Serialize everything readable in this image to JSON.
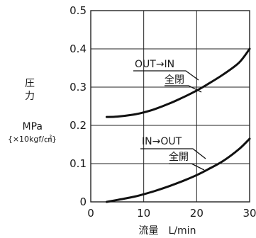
{
  "chart_data": {
    "type": "line",
    "ylabel_lines": [
      "圧",
      "力"
    ],
    "yunit_main": "MPa",
    "yunit_alt": "{×10kgf/㎠}",
    "xlabel": "流量　L/min",
    "xlim": [
      0,
      30
    ],
    "ylim": [
      0,
      0.5
    ],
    "xticks": [
      0,
      10,
      20,
      30
    ],
    "yticks": [
      0,
      0.1,
      0.2,
      0.3,
      0.4,
      0.5
    ],
    "xtick_labels": [
      "0",
      "10",
      "20",
      "30"
    ],
    "ytick_labels": [
      "0",
      "0.1",
      "0.2",
      "0.3",
      "0.4",
      "0.5"
    ],
    "grid": true,
    "series": [
      {
        "name": "OUT→IN",
        "sub_label": "全閉",
        "x": [
          3,
          5,
          8,
          10,
          12,
          15,
          18,
          20,
          22,
          25,
          28,
          30
        ],
        "y": [
          0.222,
          0.223,
          0.228,
          0.234,
          0.242,
          0.258,
          0.277,
          0.291,
          0.307,
          0.333,
          0.364,
          0.4
        ]
      },
      {
        "name": "IN→OUT",
        "sub_label": "全開",
        "x": [
          3,
          5,
          8,
          10,
          12,
          15,
          18,
          20,
          22,
          25,
          28,
          30
        ],
        "y": [
          0.0,
          0.005,
          0.013,
          0.02,
          0.028,
          0.042,
          0.058,
          0.07,
          0.084,
          0.107,
          0.138,
          0.165
        ]
      }
    ],
    "colors": {
      "curve": "#111111",
      "grid": "#222222",
      "text": "#1a1a1a"
    }
  }
}
